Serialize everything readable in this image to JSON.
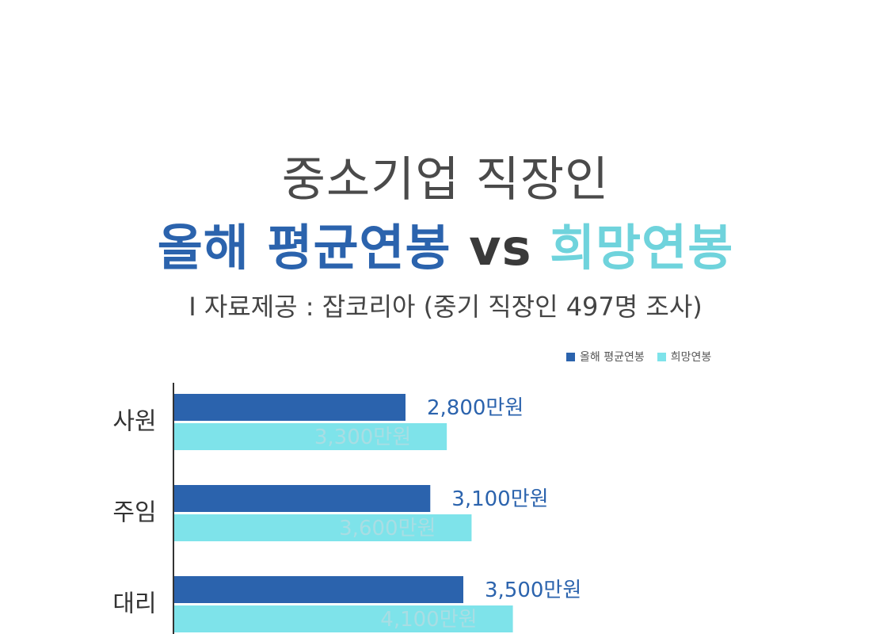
{
  "title_line1": "중소기업 직장인",
  "title_line2": {
    "current": "올해 평균연봉",
    "vs": "vs",
    "hope": "희망연봉"
  },
  "source": "I 자료제공 : 잡코리아 (중기 직장인 497명 조사)",
  "colors": {
    "current": "#2b63ad",
    "hope": "#7ee3ea",
    "hope_label": "#a9dde3"
  },
  "chart_data": {
    "type": "bar",
    "orientation": "horizontal",
    "categories": [
      "사원",
      "주임",
      "대리"
    ],
    "series": [
      {
        "name": "올해 평균연봉",
        "values": [
          2800,
          3100,
          3500
        ],
        "labels": [
          "2,800만원",
          "3,100만원",
          "3,500만원"
        ]
      },
      {
        "name": "희망연봉",
        "values": [
          3300,
          3600,
          4100
        ],
        "labels": [
          "3,300만원",
          "3,600만원",
          "4,100만원"
        ]
      }
    ],
    "unit": "만원",
    "legend": "top-right",
    "grid": false
  }
}
